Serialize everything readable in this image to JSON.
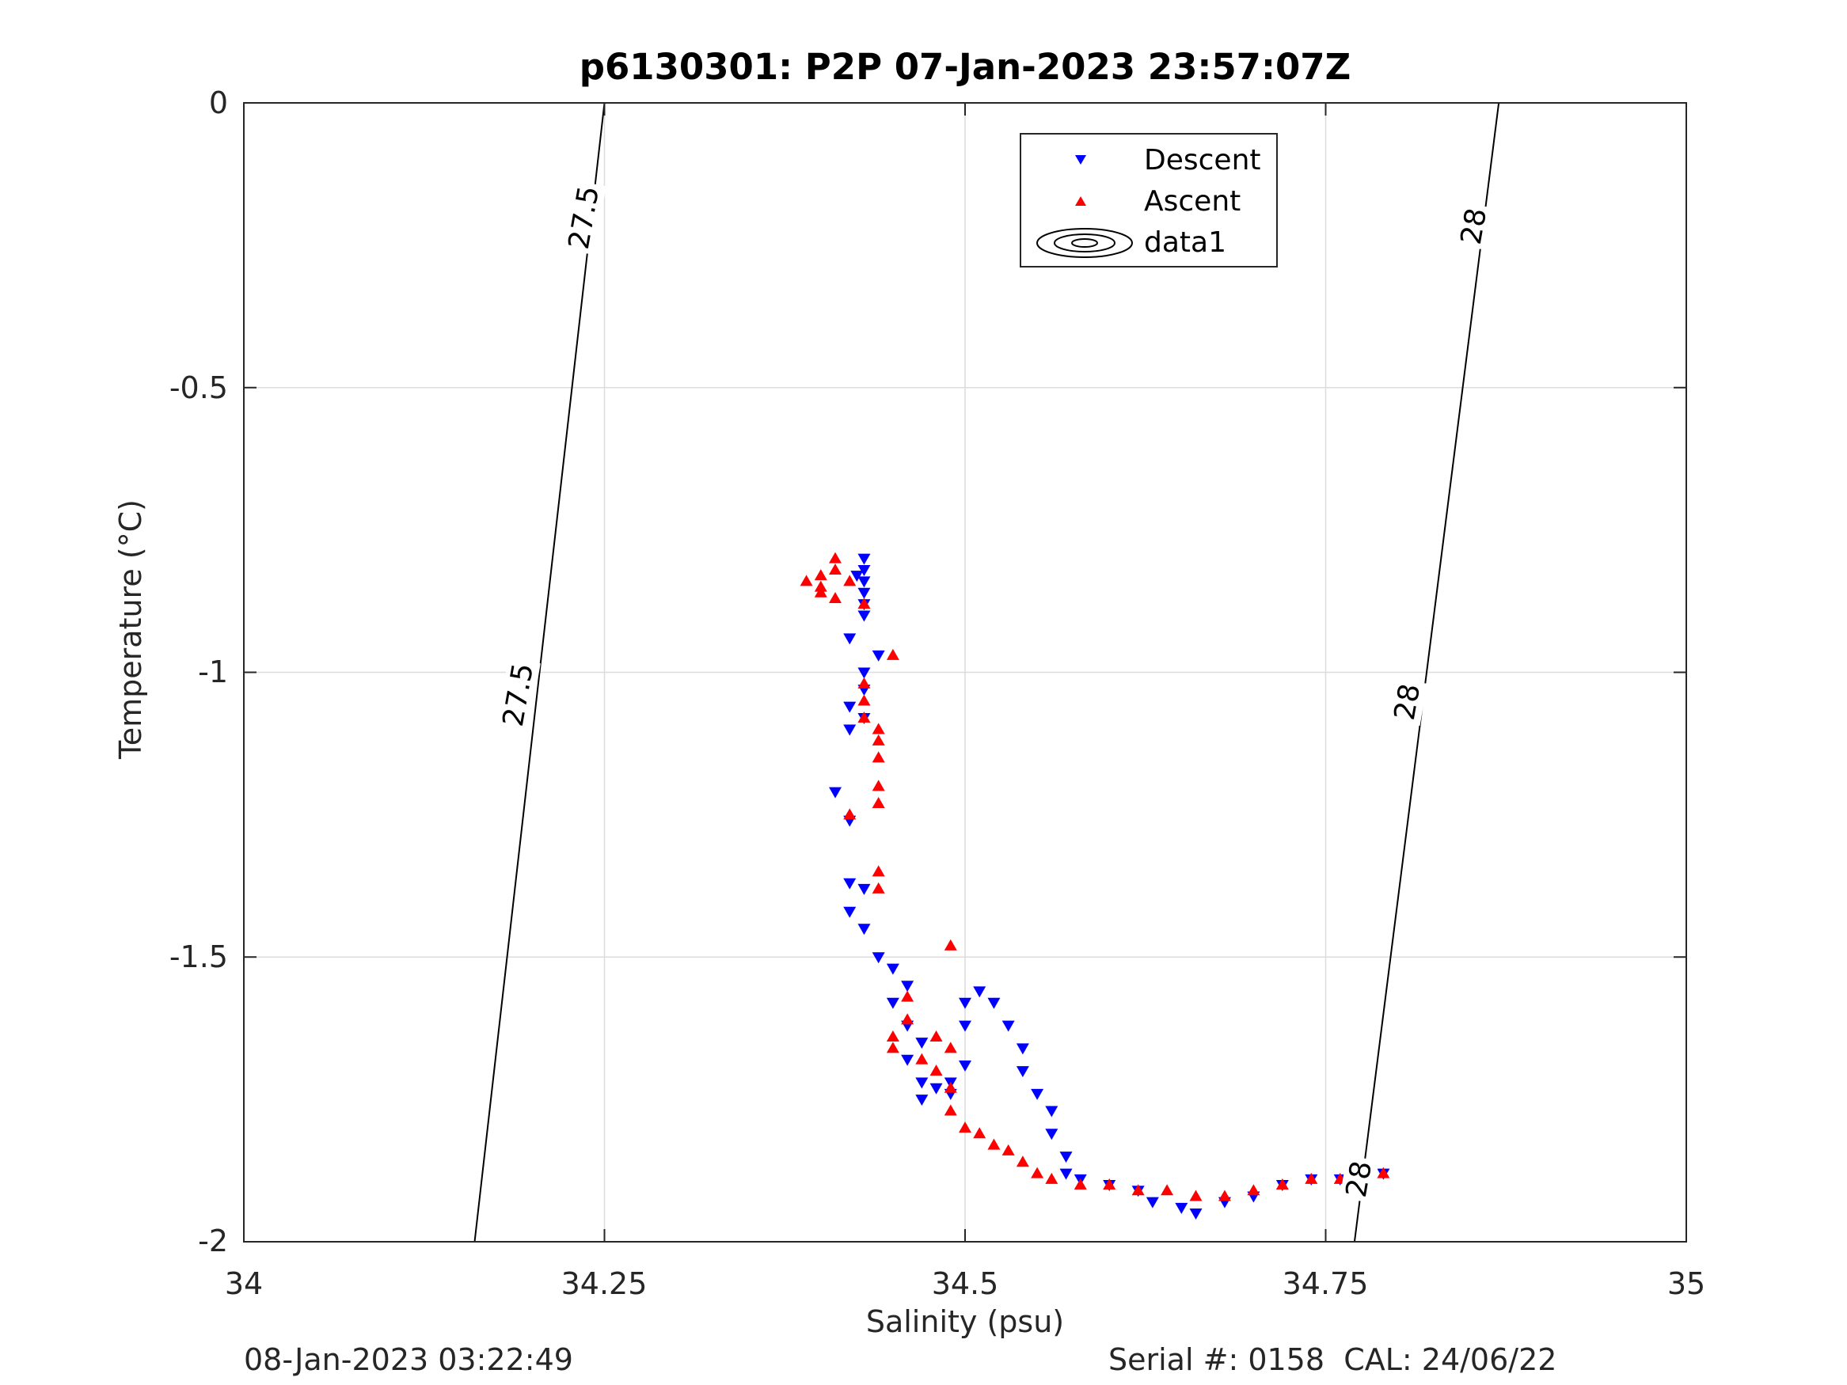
{
  "chart_data": {
    "type": "scatter",
    "title": "p6130301: P2P 07-Jan-2023 23:57:07Z",
    "xlabel": "Salinity (psu)",
    "ylabel": "Temperature (°C)",
    "xlim": [
      34,
      35
    ],
    "ylim": [
      -2,
      0
    ],
    "x_ticks": [
      "34",
      "34.25",
      "34.5",
      "34.75",
      "35"
    ],
    "y_ticks": [
      "0",
      "-0.5",
      "-1",
      "-1.5",
      "-2"
    ],
    "grid": true,
    "legend_position": "top-right",
    "legend": [
      "Descent",
      "Ascent",
      "data1"
    ],
    "series": [
      {
        "name": "Descent",
        "marker": "triangle-down",
        "color": "#0000ff",
        "points": [
          [
            34.43,
            -0.8
          ],
          [
            34.43,
            -0.82
          ],
          [
            34.43,
            -0.84
          ],
          [
            34.43,
            -0.86
          ],
          [
            34.43,
            -0.88
          ],
          [
            34.43,
            -0.9
          ],
          [
            34.425,
            -0.83
          ],
          [
            34.42,
            -0.94
          ],
          [
            34.44,
            -0.97
          ],
          [
            34.43,
            -1.0
          ],
          [
            34.43,
            -1.03
          ],
          [
            34.42,
            -1.06
          ],
          [
            34.43,
            -1.08
          ],
          [
            34.42,
            -1.1
          ],
          [
            34.41,
            -1.21
          ],
          [
            34.42,
            -1.26
          ],
          [
            34.42,
            -1.37
          ],
          [
            34.43,
            -1.38
          ],
          [
            34.42,
            -1.42
          ],
          [
            34.43,
            -1.45
          ],
          [
            34.44,
            -1.5
          ],
          [
            34.45,
            -1.52
          ],
          [
            34.46,
            -1.55
          ],
          [
            34.45,
            -1.58
          ],
          [
            34.46,
            -1.62
          ],
          [
            34.47,
            -1.65
          ],
          [
            34.46,
            -1.68
          ],
          [
            34.47,
            -1.72
          ],
          [
            34.47,
            -1.75
          ],
          [
            34.48,
            -1.73
          ],
          [
            34.49,
            -1.72
          ],
          [
            34.49,
            -1.74
          ],
          [
            34.5,
            -1.69
          ],
          [
            34.5,
            -1.62
          ],
          [
            34.5,
            -1.58
          ],
          [
            34.51,
            -1.56
          ],
          [
            34.52,
            -1.58
          ],
          [
            34.53,
            -1.62
          ],
          [
            34.54,
            -1.66
          ],
          [
            34.54,
            -1.7
          ],
          [
            34.55,
            -1.74
          ],
          [
            34.56,
            -1.77
          ],
          [
            34.56,
            -1.81
          ],
          [
            34.57,
            -1.85
          ],
          [
            34.57,
            -1.88
          ],
          [
            34.58,
            -1.89
          ],
          [
            34.6,
            -1.9
          ],
          [
            34.62,
            -1.91
          ],
          [
            34.63,
            -1.93
          ],
          [
            34.65,
            -1.94
          ],
          [
            34.66,
            -1.95
          ],
          [
            34.68,
            -1.93
          ],
          [
            34.7,
            -1.92
          ],
          [
            34.72,
            -1.9
          ],
          [
            34.74,
            -1.89
          ],
          [
            34.76,
            -1.89
          ],
          [
            34.78,
            -1.88
          ],
          [
            34.79,
            -1.88
          ]
        ]
      },
      {
        "name": "Ascent",
        "marker": "triangle-up",
        "color": "#ff0000",
        "points": [
          [
            34.39,
            -0.84
          ],
          [
            34.4,
            -0.85
          ],
          [
            34.4,
            -0.86
          ],
          [
            34.41,
            -0.8
          ],
          [
            34.41,
            -0.82
          ],
          [
            34.42,
            -0.84
          ],
          [
            34.4,
            -0.83
          ],
          [
            34.41,
            -0.87
          ],
          [
            34.43,
            -0.88
          ],
          [
            34.45,
            -0.97
          ],
          [
            34.43,
            -1.02
          ],
          [
            34.43,
            -1.05
          ],
          [
            34.43,
            -1.08
          ],
          [
            34.44,
            -1.1
          ],
          [
            34.44,
            -1.12
          ],
          [
            34.44,
            -1.15
          ],
          [
            34.44,
            -1.2
          ],
          [
            34.44,
            -1.23
          ],
          [
            34.42,
            -1.25
          ],
          [
            34.44,
            -1.35
          ],
          [
            34.44,
            -1.38
          ],
          [
            34.49,
            -1.48
          ],
          [
            34.46,
            -1.57
          ],
          [
            34.46,
            -1.61
          ],
          [
            34.45,
            -1.64
          ],
          [
            34.45,
            -1.66
          ],
          [
            34.47,
            -1.68
          ],
          [
            34.48,
            -1.64
          ],
          [
            34.49,
            -1.66
          ],
          [
            34.48,
            -1.7
          ],
          [
            34.49,
            -1.73
          ],
          [
            34.49,
            -1.77
          ],
          [
            34.5,
            -1.8
          ],
          [
            34.51,
            -1.81
          ],
          [
            34.52,
            -1.83
          ],
          [
            34.53,
            -1.84
          ],
          [
            34.54,
            -1.86
          ],
          [
            34.55,
            -1.88
          ],
          [
            34.56,
            -1.89
          ],
          [
            34.58,
            -1.9
          ],
          [
            34.6,
            -1.9
          ],
          [
            34.62,
            -1.91
          ],
          [
            34.64,
            -1.91
          ],
          [
            34.66,
            -1.92
          ],
          [
            34.68,
            -1.92
          ],
          [
            34.7,
            -1.91
          ],
          [
            34.72,
            -1.9
          ],
          [
            34.74,
            -1.89
          ],
          [
            34.76,
            -1.89
          ],
          [
            34.78,
            -1.88
          ],
          [
            34.79,
            -1.88
          ]
        ]
      }
    ],
    "contours": [
      {
        "label": "27.5",
        "points": [
          [
            34.16,
            -2.0
          ],
          [
            34.25,
            0.0
          ]
        ]
      },
      {
        "label": "28",
        "points": [
          [
            34.77,
            -2.0
          ],
          [
            34.87,
            0.0
          ]
        ]
      }
    ]
  },
  "footer": {
    "timestamp": "08-Jan-2023 03:22:49",
    "serial_cal": "Serial #: 0158  CAL: 24/06/22"
  }
}
